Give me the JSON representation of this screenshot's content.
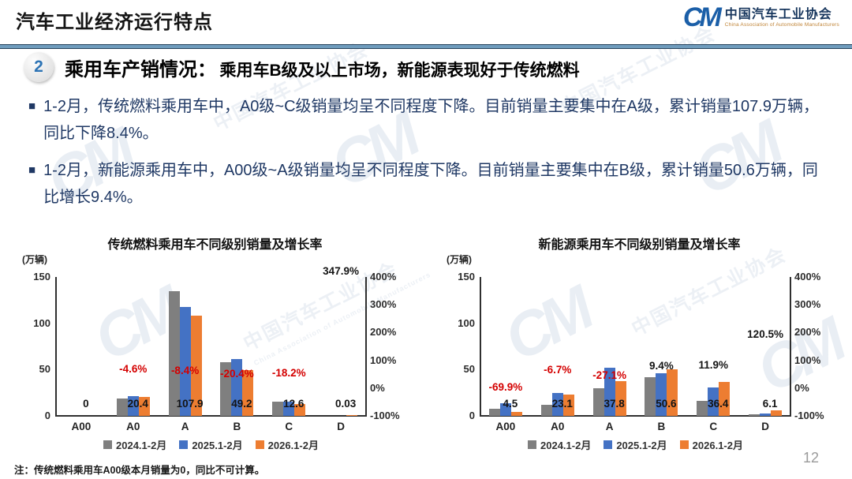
{
  "header": {
    "title": "汽车工业经济运行特点",
    "logo": {
      "mark": "CM",
      "org_cn": "中国汽车工业协会",
      "org_en": "China Association of Automobile Manufacturers"
    }
  },
  "section": {
    "number": "2",
    "heading_main": "乘用车产销情况：",
    "heading_sub": "乘用车B级及以上市场，新能源表现好于传统燃料"
  },
  "bullets": [
    "1-2月，传统燃料乘用车中，A0级~C级销量均呈不同程度下降。目前销量主要集中在A级，累计销量107.9万辆，同比下降8.4%。",
    "1-2月，新能源乘用车中，A00级~A级销量均呈不同程度下降。目前销量主要集中在B级，累计销量50.6万辆，同比增长9.4%。"
  ],
  "footnote": "注：传统燃料乘用车A00级本月销量为0，同比不可计算。",
  "page_number": "12",
  "watermark_text": "中国汽车工业协会",
  "watermark_en": "China Association of Automobile Manufacturers",
  "colors": {
    "series_gray": "#7f7f7f",
    "series_blue": "#4472c4",
    "series_orange": "#ed7d31",
    "negative_label": "#d40000",
    "positive_label": "#141414",
    "bullet_text": "#1f3864",
    "divider_blue": "#6f9cbd",
    "logo_blue": "#1b5fa8"
  },
  "chart_data": [
    {
      "type": "bar",
      "title": "传统燃料乘用车不同级别销量及增长率",
      "unit_label": "(万辆)",
      "categories": [
        "A00",
        "A0",
        "A",
        "B",
        "C",
        "D"
      ],
      "series": [
        {
          "name": "2024.1-2月",
          "color": "#7f7f7f",
          "values": [
            0,
            19,
            135,
            58,
            15.5,
            0
          ]
        },
        {
          "name": "2025.1-2月",
          "color": "#4472c4",
          "values": [
            0,
            21.5,
            118,
            61,
            15.5,
            0
          ]
        },
        {
          "name": "2026.1-2月",
          "color": "#ed7d31",
          "values": [
            0,
            20.4,
            107.9,
            49.2,
            12.6,
            0.03
          ]
        }
      ],
      "value_labels": [
        "0",
        "20.4",
        "107.9",
        "49.2",
        "12.6",
        "0.03"
      ],
      "growth_labels": [
        "",
        "-4.6%",
        "-8.4%",
        "-20.4%",
        "-18.2%",
        "347.9%"
      ],
      "growth_values": [
        null,
        -4.6,
        -8.4,
        -20.4,
        -18.2,
        347.9
      ],
      "ylabel_left_ticks": [
        "150",
        "100",
        "50",
        "0"
      ],
      "ylim_left": [
        0,
        150
      ],
      "ylabel_right_ticks": [
        "400%",
        "300%",
        "200%",
        "100%",
        "0%",
        "-100%"
      ],
      "ylim_right": [
        -100,
        400
      ],
      "legend_position": "bottom"
    },
    {
      "type": "bar",
      "title": "新能源乘用车不同级别销量及增长率",
      "unit_label": "(万辆)",
      "categories": [
        "A00",
        "A0",
        "A",
        "B",
        "C",
        "D"
      ],
      "series": [
        {
          "name": "2024.1-2月",
          "color": "#7f7f7f",
          "values": [
            8,
            12,
            30,
            42,
            16,
            1.5
          ]
        },
        {
          "name": "2025.1-2月",
          "color": "#4472c4",
          "values": [
            14,
            25,
            52,
            46,
            31,
            2.5
          ]
        },
        {
          "name": "2026.1-2月",
          "color": "#ed7d31",
          "values": [
            4.5,
            23.1,
            37.8,
            50.6,
            36.4,
            6.1
          ]
        }
      ],
      "value_labels": [
        "4.5",
        "23.1",
        "37.8",
        "50.6",
        "36.4",
        "6.1"
      ],
      "growth_labels": [
        "-69.9%",
        "-6.7%",
        "-27.1%",
        "9.4%",
        "11.9%",
        "120.5%"
      ],
      "growth_values": [
        -69.9,
        -6.7,
        -27.1,
        9.4,
        11.9,
        120.5
      ],
      "ylabel_left_ticks": [
        "150",
        "100",
        "50",
        "0"
      ],
      "ylim_left": [
        0,
        150
      ],
      "ylabel_right_ticks": [
        "400%",
        "300%",
        "200%",
        "100%",
        "0%",
        "-100%"
      ],
      "ylim_right": [
        -100,
        400
      ],
      "legend_position": "bottom"
    }
  ]
}
